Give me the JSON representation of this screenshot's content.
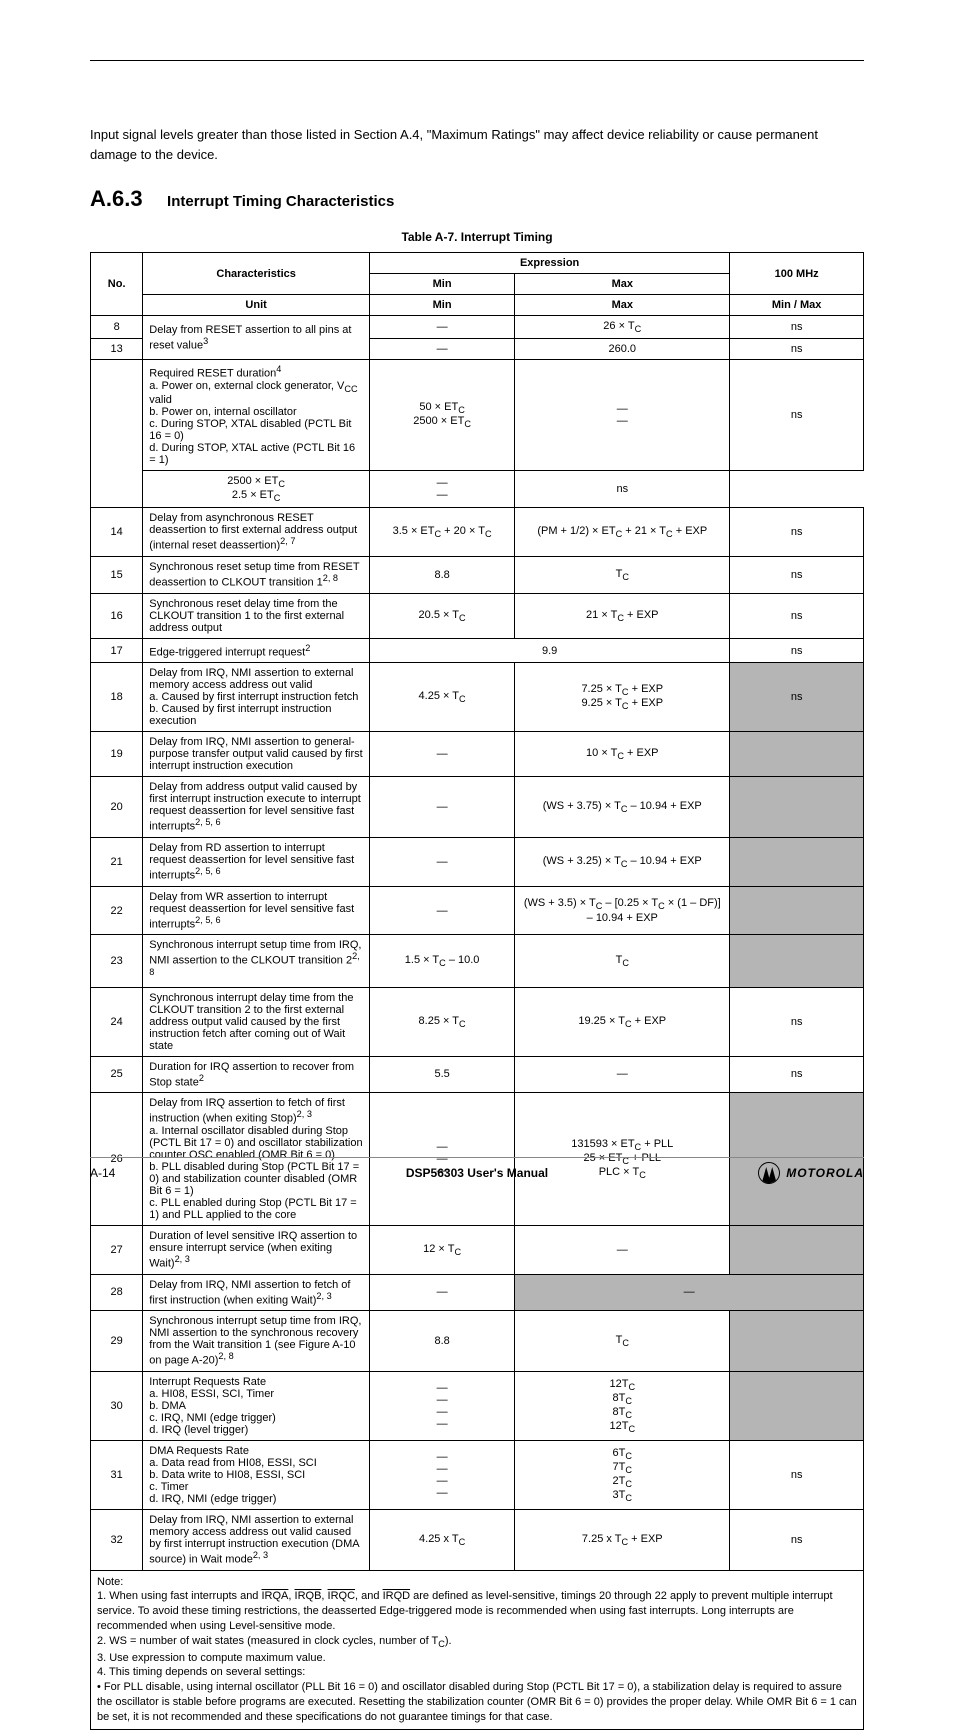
{
  "header": {
    "running": ""
  },
  "top_paragraph": "Input signal levels greater than those listed in Section A.4, \"Maximum Ratings\" may affect device reliability or cause permanent damage to the device.",
  "section_number": "A.6.3",
  "section_title": "Interrupt Timing Characteristics",
  "table_caption": "Table A-7. Interrupt Timing",
  "table": {
    "header": {
      "no": "No.",
      "characteristics": "Characteristics",
      "expression_group": "Expression",
      "expr_min": "Min",
      "expr_max": "Max",
      "unit": "Unit",
      "freq_rows": [
        {
          "label": "100 MHz",
          "min": "Min",
          "max": "Max"
        }
      ],
      "thirdsub": {
        "min": "Min",
        "max": "Max"
      }
    },
    "rows": [
      {
        "no": "8",
        "char": "Delay from RESET assertion to all pins at reset value<sup>3</sup>",
        "char_rowspan": 2,
        "cols": [
          {
            "t": "—",
            "span": 1
          },
          {
            "t": "26 × T<sub>C</sub>",
            "span": 1
          }
        ],
        "last": "ns"
      },
      {
        "no": "13",
        "cols": [
          {
            "t": "—",
            "span": 1
          },
          {
            "t": "260.0",
            "span": 1
          }
        ],
        "last": "ns"
      },
      {
        "no_rowspan": 2,
        "no": "",
        "char": "Required RESET duration<sup>4</sup><br>a. Power on, external clock generator, V<sub>CC</sub> valid<br>b. Power on, internal oscillator<br>c. During STOP, XTAL disabled (PCTL Bit 16 = 0)<br>d. During STOP, XTAL active (PCTL Bit 16 = 1)",
        "cols": [
          {
            "t": "50 × ET<sub>C</sub><br>2500 × ET<sub>C</sub>",
            "span": 1
          },
          {
            "t": "—<br>—",
            "span": 1
          }
        ],
        "last": "ns"
      },
      {
        "cols": [
          {
            "t": "2500 × ET<sub>C</sub><br>2.5 × ET<sub>C</sub>",
            "span": 1
          },
          {
            "t": "—<br>—",
            "span": 1
          }
        ],
        "last": "ns"
      },
      {
        "no": "14",
        "char": "Delay from asynchronous RESET deassertion to first external address output (internal reset deassertion)<sup>2, 7</sup>",
        "cols": [
          {
            "t": "3.5 × ET<sub>C</sub> + 20 × T<sub>C</sub>",
            "span": 1
          },
          {
            "t": "(PM + 1/2) × ET<sub>C</sub> + 21 × T<sub>C</sub> + EXP",
            "span": 1
          }
        ],
        "last": "ns"
      },
      {
        "no": "15",
        "char": "Synchronous reset setup time from RESET deassertion to CLKOUT transition 1<sup>2, 8</sup>",
        "cols": [
          {
            "t": "8.8",
            "span": 1
          },
          {
            "t": "T<sub>C</sub>",
            "span": 1
          }
        ],
        "last": "ns"
      },
      {
        "no": "16",
        "char": "Synchronous reset delay time from the CLKOUT transition 1 to the first external address output",
        "cols": [
          {
            "t": "20.5 × T<sub>C</sub>",
            "span": 1
          },
          {
            "t": "21 × T<sub>C</sub> + EXP",
            "span": 1
          }
        ],
        "last": "ns"
      },
      {
        "no": "17",
        "char": "Edge-triggered interrupt request<sup>2</sup>",
        "cols": [
          {
            "t": "9.9",
            "span": 2
          }
        ],
        "last": "ns"
      },
      {
        "no": "18",
        "char": "Delay from IRQ, NMI assertion to external memory access address out valid<br>a. Caused by first interrupt instruction fetch<br>b. Caused by first interrupt instruction execution",
        "cols": [
          {
            "t": "4.25 × T<sub>C</sub>",
            "span": 1
          },
          {
            "t": "7.25 × T<sub>C</sub> + EXP<br>9.25 × T<sub>C</sub> + EXP",
            "span": 1
          }
        ],
        "last": "ns",
        "last_grey": true
      },
      {
        "no": "19",
        "char": "Delay from IRQ, NMI assertion to general-purpose transfer output valid caused by first interrupt instruction execution",
        "cols": [
          {
            "t": "—",
            "span": 1
          },
          {
            "t": "10 × T<sub>C</sub> + EXP",
            "span": 1
          }
        ],
        "last": "",
        "last_grey": true
      },
      {
        "no": "20",
        "char": "Delay from address output valid caused by first interrupt instruction execute to interrupt request deassertion for level sensitive fast interrupts<sup>2, 5, 6</sup>",
        "cols": [
          {
            "t": "—",
            "span": 1
          },
          {
            "t": "(WS + 3.75) × T<sub>C</sub> – 10.94 + EXP",
            "span": 1
          }
        ],
        "last": "",
        "last_grey": true
      },
      {
        "no": "21",
        "char": "Delay from RD assertion to interrupt request deassertion for level sensitive fast interrupts<sup>2, 5, 6</sup>",
        "cols": [
          {
            "t": "—",
            "span": 1
          },
          {
            "t": "(WS + 3.25) × T<sub>C</sub> – 10.94 + EXP",
            "span": 1
          }
        ],
        "last": "",
        "last_grey": true
      },
      {
        "no": "22",
        "char": "Delay from WR assertion to interrupt request deassertion for level sensitive fast interrupts<sup>2, 5, 6</sup>",
        "cols": [
          {
            "t": "—",
            "span": 1
          },
          {
            "t": "(WS + 3.5) × T<sub>C</sub> – [0.25 × T<sub>C</sub> × (1 – DF)] – 10.94 + EXP",
            "span": 1
          }
        ],
        "last": "",
        "last_grey": true
      },
      {
        "no": "23",
        "char": "Synchronous interrupt setup time from IRQ, NMI assertion to the CLKOUT transition 2<sup>2, 8</sup>",
        "cols": [
          {
            "t": "1.5 × T<sub>C</sub> – 10.0",
            "span": 1
          },
          {
            "t": "T<sub>C</sub>",
            "span": 1
          }
        ],
        "last": "",
        "last_grey": true
      },
      {
        "no": "24",
        "char": "Synchronous interrupt delay time from the CLKOUT transition 2 to the first external address output valid caused by the first instruction fetch after coming out of Wait state",
        "cols": [
          {
            "t": "8.25 × T<sub>C</sub>",
            "span": 1
          },
          {
            "t": "19.25 × T<sub>C</sub> + EXP",
            "span": 1
          }
        ],
        "last": "ns"
      },
      {
        "no": "25",
        "char": "Duration for IRQ assertion to recover from Stop state<sup>2</sup>",
        "cols": [
          {
            "t": "5.5",
            "span": 1
          },
          {
            "t": "—",
            "span": 1
          }
        ],
        "last": "ns"
      },
      {
        "no": "26",
        "char": "Delay from IRQ assertion to fetch of first instruction (when exiting Stop)<sup>2, 3</sup><br>a. Internal oscillator disabled during Stop (PCTL Bit 17 = 0) and oscillator stabilization counter OSC enabled (OMR Bit 6 = 0)<br>b. PLL disabled during Stop (PCTL Bit 17 = 0) and stabilization counter disabled (OMR Bit 6 = 1)<br>c. PLL enabled during Stop (PCTL Bit 17 = 1) and PLL applied to the core",
        "cols": [
          {
            "t": "—<br>—<br>—",
            "span": 1
          },
          {
            "t": "131593 × ET<sub>C</sub> + PLL<br>25 × ET<sub>C</sub> + PLL<br>PLC × T<sub>C</sub>",
            "span": 1
          }
        ],
        "last": "",
        "last_grey": true
      },
      {
        "no": "27",
        "char": "Duration of level sensitive IRQ assertion to ensure interrupt service (when exiting Wait)<sup>2, 3</sup>",
        "cols": [
          {
            "t": "12 × T<sub>C</sub>",
            "span": 1
          },
          {
            "t": "—",
            "span": 1
          }
        ],
        "last": "",
        "last_grey": true
      },
      {
        "no": "28",
        "char": "Delay from IRQ, NMI assertion to fetch of first instruction (when exiting Wait)<sup>2, 3</sup>",
        "cols": [
          {
            "t": "—",
            "span": 1
          },
          {
            "t": "—",
            "span": 2,
            "grey": true
          }
        ],
        "last_merge_grey": true
      },
      {
        "no": "29",
        "char": "Synchronous interrupt setup time from IRQ, NMI assertion to the synchronous recovery from the Wait transition 1 (see Figure A-10 on page A-20)<sup>2, 8</sup>",
        "cols": [
          {
            "t": "8.8",
            "span": 1
          },
          {
            "t": "T<sub>C</sub>",
            "span": 1
          }
        ],
        "last": "",
        "last_grey": true
      },
      {
        "no": "30",
        "char": "Interrupt Requests Rate<br>a. HI08, ESSI, SCI, Timer<br>b. DMA<br>c. IRQ, NMI (edge trigger)<br>d. IRQ (level trigger)",
        "cols": [
          {
            "t": "—<br>—<br>—<br>—",
            "span": 1
          },
          {
            "t": "12T<sub>C</sub><br>8T<sub>C</sub><br>8T<sub>C</sub><br>12T<sub>C</sub>",
            "span": 1
          }
        ],
        "last": "",
        "last_grey": true
      },
      {
        "no": "31",
        "char": "DMA Requests Rate<br>a. Data read from HI08, ESSI, SCI<br>b. Data write to HI08, ESSI, SCI<br>c. Timer<br>d. IRQ, NMI (edge trigger)",
        "cols": [
          {
            "t": "—<br>—<br>—<br>—",
            "span": 1
          },
          {
            "t": "6T<sub>C</sub><br>7T<sub>C</sub><br>2T<sub>C</sub><br>3T<sub>C</sub>",
            "span": 1
          }
        ],
        "last": "ns"
      },
      {
        "no": "32",
        "char": "Delay from IRQ, NMI assertion to external memory access address out valid caused by first interrupt instruction execution (DMA source) in Wait mode<sup>2, 3</sup>",
        "cols": [
          {
            "t": "4.25 x T<sub>C</sub>",
            "span": 1
          },
          {
            "t": "7.25 x T<sub>C</sub> + EXP",
            "span": 1
          }
        ],
        "last": "ns"
      }
    ],
    "notes": "Note:\n1. When using fast interrupts and IRQA, IRQB, IRQC, and IRQD are defined as level-sensitive, timings 20 through 22 apply to prevent multiple interrupt service. To avoid these timing restrictions, the deasserted Edge-triggered mode is recommended when using fast interrupts. Long interrupts are recommended when using Level-sensitive mode.\n2. WS = number of wait states (measured in clock cycles, number of T<sub>C</sub>).\n3. Use expression to compute maximum value.\n4. This timing depends on several settings:\n• For PLL disable, using internal oscillator (PLL Bit 16 = 0) and oscillator disabled during Stop (PCTL Bit 17 = 0), a stabilization delay is required to assure the oscillator is stable before programs are executed. Resetting the stabilization counter (OMR Bit 6 = 0) provides the proper delay. While OMR Bit 6 = 1 can be set, it is not recommended and these specifications do not guarantee timings for that case."
  },
  "footer": {
    "page": "A-14",
    "docname": "DSP56303 User's Manual",
    "brand": "MOTOROLA"
  }
}
